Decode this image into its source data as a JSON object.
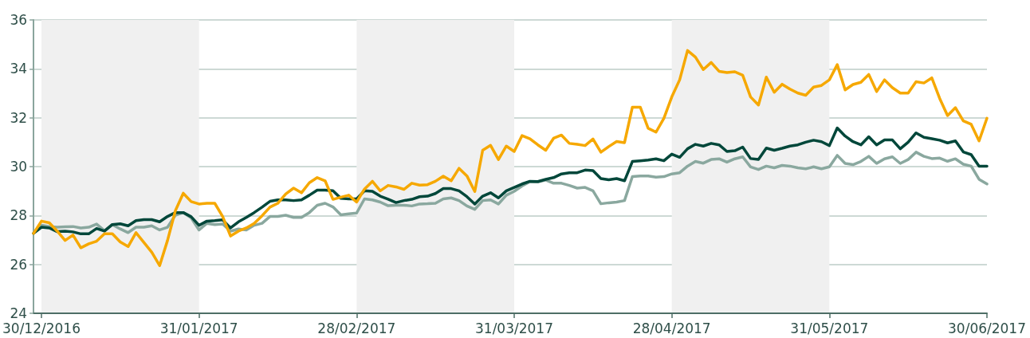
{
  "chart_data": {
    "type": "line",
    "categories": [
      null,
      "30/12/2016",
      null,
      null,
      null,
      null,
      null,
      null,
      null,
      null,
      null,
      null,
      null,
      null,
      null,
      null,
      null,
      null,
      null,
      null,
      null,
      "31/01/2017",
      null,
      null,
      null,
      null,
      null,
      null,
      null,
      null,
      null,
      null,
      null,
      null,
      null,
      null,
      null,
      null,
      null,
      null,
      null,
      "28/02/2017",
      null,
      null,
      null,
      null,
      null,
      null,
      null,
      null,
      null,
      null,
      null,
      null,
      null,
      null,
      null,
      null,
      null,
      null,
      null,
      "31/03/2017",
      null,
      null,
      null,
      null,
      null,
      null,
      null,
      null,
      null,
      null,
      null,
      null,
      null,
      null,
      null,
      null,
      null,
      null,
      null,
      "28/04/2017",
      null,
      null,
      null,
      null,
      null,
      null,
      null,
      null,
      null,
      null,
      null,
      null,
      null,
      null,
      null,
      null,
      null,
      null,
      null,
      "31/05/2017",
      null,
      null,
      null,
      null,
      null,
      null,
      null,
      null,
      null,
      null,
      null,
      null,
      null,
      null,
      null,
      null,
      null,
      null,
      null,
      "30/06/2017"
    ],
    "ylim": [
      24,
      36
    ],
    "yticks": [
      24,
      26,
      28,
      30,
      32,
      34,
      36
    ],
    "grid": "y",
    "bands": [
      {
        "axis": "x",
        "from": "30/12/2016",
        "to": "31/01/2017",
        "color": "#f0f0f0"
      },
      {
        "axis": "x",
        "from": "28/02/2017",
        "to": "31/03/2017",
        "color": "#f0f0f0"
      },
      {
        "axis": "x",
        "from": "28/04/2017",
        "to": "31/05/2017",
        "color": "#f0f0f0"
      }
    ],
    "series": [
      {
        "color": "#8aa89f",
        "values": [
          27.27,
          27.6,
          27.55,
          27.52,
          27.54,
          27.55,
          27.49,
          27.52,
          27.65,
          27.38,
          27.63,
          27.45,
          27.3,
          27.52,
          27.52,
          27.58,
          27.41,
          27.52,
          28.01,
          28.12,
          27.9,
          27.41,
          27.68,
          27.63,
          27.65,
          27.36,
          27.45,
          27.41,
          27.6,
          27.68,
          27.96,
          27.96,
          28.01,
          27.92,
          27.92,
          28.12,
          28.42,
          28.5,
          28.35,
          28.03,
          28.07,
          28.1,
          28.68,
          28.64,
          28.55,
          28.4,
          28.42,
          28.42,
          28.39,
          28.47,
          28.48,
          28.5,
          28.68,
          28.72,
          28.61,
          28.39,
          28.25,
          28.61,
          28.64,
          28.47,
          28.83,
          28.99,
          29.21,
          29.38,
          29.37,
          29.45,
          29.32,
          29.32,
          29.23,
          29.12,
          29.15,
          29.01,
          28.48,
          28.52,
          28.55,
          28.61,
          29.59,
          29.62,
          29.62,
          29.57,
          29.59,
          29.7,
          29.75,
          30.02,
          30.21,
          30.14,
          30.29,
          30.32,
          30.18,
          30.32,
          30.4,
          29.99,
          29.88,
          30.02,
          29.95,
          30.05,
          30.02,
          29.95,
          29.91,
          29.99,
          29.91,
          29.99,
          30.46,
          30.13,
          30.08,
          30.21,
          30.42,
          30.13,
          30.32,
          30.4,
          30.13,
          30.29,
          30.59,
          30.42,
          30.33,
          30.35,
          30.22,
          30.32,
          30.1,
          30.02,
          29.48,
          29.29
        ]
      },
      {
        "color": "#00473a",
        "values": [
          27.27,
          27.52,
          27.49,
          27.34,
          27.36,
          27.33,
          27.25,
          27.25,
          27.47,
          27.36,
          27.63,
          27.66,
          27.58,
          27.79,
          27.83,
          27.83,
          27.74,
          27.96,
          28.12,
          28.12,
          27.95,
          27.6,
          27.77,
          27.79,
          27.82,
          27.49,
          27.74,
          27.92,
          28.12,
          28.34,
          28.58,
          28.64,
          28.64,
          28.61,
          28.64,
          28.83,
          29.04,
          29.04,
          29.01,
          28.7,
          28.68,
          28.68,
          29.01,
          28.99,
          28.79,
          28.67,
          28.53,
          28.61,
          28.66,
          28.77,
          28.79,
          28.9,
          29.1,
          29.1,
          29.01,
          28.77,
          28.47,
          28.79,
          28.93,
          28.72,
          29.01,
          29.15,
          29.29,
          29.4,
          29.39,
          29.48,
          29.55,
          29.7,
          29.75,
          29.75,
          29.86,
          29.84,
          29.51,
          29.46,
          29.51,
          29.42,
          30.21,
          30.24,
          30.27,
          30.32,
          30.24,
          30.51,
          30.38,
          30.73,
          30.91,
          30.84,
          30.95,
          30.89,
          30.62,
          30.65,
          30.8,
          30.33,
          30.29,
          30.76,
          30.67,
          30.75,
          30.84,
          30.89,
          31.0,
          31.08,
          31.02,
          30.86,
          31.58,
          31.25,
          31.02,
          30.89,
          31.22,
          30.89,
          31.09,
          31.09,
          30.73,
          31.0,
          31.38,
          31.2,
          31.14,
          31.08,
          30.97,
          31.05,
          30.6,
          30.49,
          30.02,
          30.02
        ]
      },
      {
        "color": "#f6a800",
        "values": [
          27.27,
          27.77,
          27.7,
          27.36,
          26.98,
          27.2,
          26.68,
          26.84,
          26.95,
          27.25,
          27.25,
          26.92,
          26.73,
          27.3,
          26.9,
          26.5,
          25.95,
          26.98,
          28.2,
          28.91,
          28.57,
          28.47,
          28.5,
          28.5,
          27.96,
          27.16,
          27.36,
          27.49,
          27.68,
          27.99,
          28.34,
          28.5,
          28.88,
          29.12,
          28.93,
          29.34,
          29.55,
          29.42,
          28.66,
          28.75,
          28.83,
          28.55,
          29.08,
          29.4,
          29.01,
          29.23,
          29.17,
          29.07,
          29.32,
          29.24,
          29.26,
          29.4,
          29.61,
          29.42,
          29.93,
          29.62,
          28.98,
          30.67,
          30.87,
          30.29,
          30.84,
          30.62,
          31.27,
          31.14,
          30.89,
          30.67,
          31.16,
          31.29,
          30.95,
          30.91,
          30.86,
          31.13,
          30.59,
          30.82,
          31.03,
          30.98,
          32.43,
          32.43,
          31.57,
          31.41,
          31.98,
          32.85,
          33.55,
          34.75,
          34.48,
          33.97,
          34.26,
          33.9,
          33.85,
          33.88,
          33.74,
          32.85,
          32.52,
          33.66,
          33.04,
          33.37,
          33.17,
          33.01,
          32.92,
          33.25,
          33.32,
          33.55,
          34.17,
          33.14,
          33.36,
          33.45,
          33.77,
          33.07,
          33.55,
          33.23,
          33.01,
          33.01,
          33.47,
          33.42,
          33.63,
          32.79,
          32.09,
          32.41,
          31.87,
          31.73,
          31.05,
          31.98
        ]
      }
    ]
  }
}
